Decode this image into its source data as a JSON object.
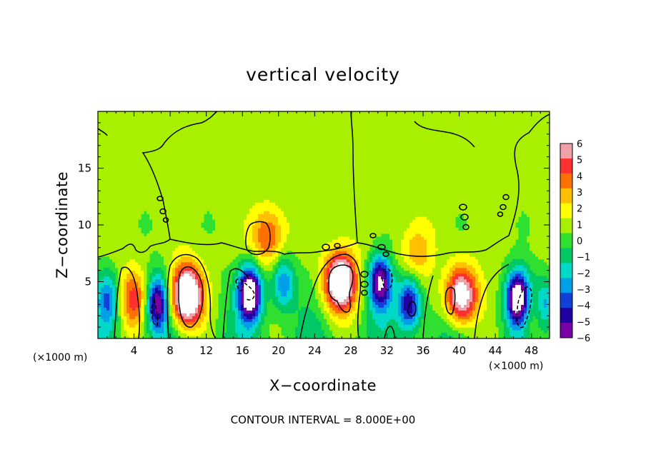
{
  "chart_data": {
    "type": "heatmap",
    "title": "vertical velocity",
    "xlabel": "X−coordinate",
    "ylabel": "Z−coordinate",
    "x_units_left": "(×1000 m)",
    "x_units_right": "(×1000 m)",
    "xlim": [
      0,
      50
    ],
    "ylim": [
      0,
      20
    ],
    "x_ticks": [
      4,
      8,
      12,
      16,
      20,
      24,
      28,
      32,
      36,
      40,
      44,
      48
    ],
    "y_ticks": [
      5,
      10,
      15
    ],
    "colorbar": {
      "min": -6,
      "max": 6,
      "ticks": [
        "6",
        "5",
        "4",
        "3",
        "2",
        "1",
        "0",
        "−1",
        "−2",
        "−3",
        "−4",
        "−5",
        "−6"
      ],
      "colors": [
        "#f2a0a8",
        "#ff3030",
        "#ff7000",
        "#ffc000",
        "#ffff00",
        "#a8f000",
        "#30e030",
        "#00c864",
        "#00d8c8",
        "#00a0e8",
        "#1040d8",
        "#2000a0",
        "#7800a8"
      ]
    },
    "footnote": "CONTOUR INTERVAL = 8.000E+00",
    "background_value": 0.8,
    "updrafts": [
      {
        "x": 4,
        "z": 3.5,
        "amp": 4.5
      },
      {
        "x": 9.8,
        "z": 3.8,
        "amp": 10
      },
      {
        "x": 18.8,
        "z": 9.0,
        "amp": 4
      },
      {
        "x": 26.8,
        "z": 5.0,
        "amp": 9
      },
      {
        "x": 35.2,
        "z": 7.5,
        "amp": 2.5
      },
      {
        "x": 40.2,
        "z": 3.8,
        "amp": 8
      },
      {
        "x": 48,
        "z": 2.2,
        "amp": 2.5
      }
    ],
    "downdrafts": [
      {
        "x": 1.2,
        "z": 3.5,
        "amp": 4
      },
      {
        "x": 6.5,
        "z": 3.2,
        "amp": 7
      },
      {
        "x": 16.8,
        "z": 4.0,
        "amp": 9
      },
      {
        "x": 20.5,
        "z": 5.0,
        "amp": 4
      },
      {
        "x": 31.2,
        "z": 5.0,
        "amp": 7
      },
      {
        "x": 34.5,
        "z": 3.2,
        "amp": 6
      },
      {
        "x": 46.5,
        "z": 3.5,
        "amp": 9
      },
      {
        "x": 49.5,
        "z": 3.0,
        "amp": 4
      }
    ]
  }
}
